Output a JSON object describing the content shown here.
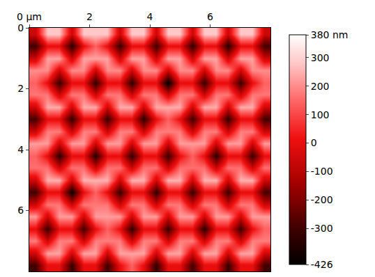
{
  "chart_data": {
    "type": "heatmap",
    "x": [
      0.2,
      0.6,
      1.0,
      1.4,
      1.8,
      2.2,
      2.6,
      3.0,
      3.4,
      3.8,
      4.2,
      4.6,
      5.0,
      5.4,
      5.8,
      6.2,
      6.6,
      7.0,
      7.4,
      7.8
    ],
    "y": [
      0.2,
      0.6,
      1.0,
      1.4,
      1.8,
      2.2,
      2.6,
      3.0,
      3.4,
      3.8,
      4.2,
      4.6,
      5.0,
      5.4,
      5.8,
      6.2,
      6.6,
      7.0,
      7.4,
      7.8
    ],
    "z": [
      [
        -60,
        280,
        280,
        -60,
        280,
        280,
        280,
        -60,
        280,
        280,
        -60,
        280,
        280,
        -60,
        280,
        280,
        -60,
        280,
        280,
        -60
      ],
      [
        -300,
        0,
        0,
        -340,
        0,
        140,
        0,
        -320,
        0,
        0,
        -310,
        0,
        0,
        -330,
        0,
        0,
        -350,
        0,
        0,
        -300
      ],
      [
        -60,
        230,
        230,
        -60,
        230,
        230,
        230,
        -60,
        230,
        230,
        -60,
        230,
        230,
        -60,
        230,
        230,
        -60,
        230,
        230,
        -60
      ],
      [
        200,
        200,
        -60,
        200,
        200,
        -60,
        200,
        200,
        -60,
        200,
        200,
        -60,
        200,
        200,
        -60,
        200,
        200,
        -60,
        200,
        200
      ],
      [
        140,
        0,
        -320,
        0,
        0,
        -330,
        0,
        0,
        -340,
        0,
        0,
        -426,
        0,
        0,
        -320,
        0,
        0,
        -310,
        0,
        140
      ],
      [
        170,
        170,
        -60,
        170,
        170,
        -60,
        170,
        170,
        -60,
        170,
        170,
        -60,
        170,
        170,
        -60,
        170,
        170,
        -60,
        170,
        170
      ],
      [
        -60,
        240,
        240,
        -60,
        240,
        240,
        -60,
        240,
        240,
        -60,
        240,
        240,
        240,
        -60,
        240,
        240,
        -60,
        240,
        240,
        -60
      ],
      [
        -290,
        0,
        0,
        -330,
        0,
        0,
        -320,
        0,
        0,
        -340,
        0,
        140,
        0,
        -310,
        0,
        0,
        -330,
        0,
        0,
        -300
      ],
      [
        -60,
        180,
        180,
        -60,
        180,
        180,
        -60,
        180,
        180,
        -60,
        180,
        180,
        180,
        -60,
        180,
        180,
        -60,
        180,
        180,
        -60
      ],
      [
        220,
        220,
        -60,
        220,
        220,
        -60,
        220,
        220,
        -60,
        220,
        220,
        -60,
        220,
        220,
        220,
        -60,
        220,
        220,
        -60,
        220
      ],
      [
        140,
        0,
        -340,
        0,
        0,
        -350,
        0,
        0,
        -330,
        0,
        0,
        -320,
        0,
        140,
        0,
        -340,
        0,
        0,
        -310,
        0
      ],
      [
        160,
        160,
        -60,
        160,
        160,
        -60,
        160,
        160,
        -60,
        160,
        160,
        -60,
        160,
        160,
        160,
        -60,
        160,
        160,
        -60,
        160
      ],
      [
        -60,
        250,
        250,
        -60,
        250,
        250,
        250,
        -60,
        250,
        250,
        -60,
        250,
        250,
        -60,
        250,
        250,
        -60,
        250,
        250,
        -60
      ],
      [
        -300,
        0,
        0,
        -400,
        0,
        140,
        0,
        -320,
        0,
        0,
        -330,
        0,
        0,
        -320,
        0,
        0,
        -310,
        0,
        0,
        -290
      ],
      [
        -60,
        170,
        170,
        -60,
        170,
        170,
        170,
        -60,
        170,
        170,
        -60,
        170,
        170,
        -60,
        170,
        170,
        -60,
        170,
        170,
        -60
      ],
      [
        220,
        -60,
        220,
        220,
        -60,
        220,
        220,
        220,
        -60,
        220,
        220,
        -60,
        220,
        220,
        -60,
        220,
        220,
        -60,
        220,
        220
      ],
      [
        0,
        -310,
        0,
        0,
        -300,
        0,
        140,
        0,
        -330,
        0,
        0,
        -320,
        0,
        0,
        -340,
        0,
        0,
        -310,
        0,
        140
      ],
      [
        180,
        -60,
        180,
        180,
        -60,
        180,
        180,
        180,
        -60,
        180,
        180,
        -60,
        180,
        180,
        -60,
        180,
        180,
        -60,
        180,
        180
      ],
      [
        -60,
        230,
        230,
        -60,
        230,
        230,
        -60,
        230,
        230,
        230,
        -60,
        230,
        230,
        -60,
        230,
        230,
        -60,
        230,
        230,
        -60
      ],
      [
        -300,
        0,
        0,
        -320,
        0,
        0,
        -310,
        0,
        140,
        0,
        -330,
        0,
        0,
        -300,
        0,
        0,
        -320,
        0,
        0,
        -300
      ]
    ],
    "xlim": [
      0,
      8
    ],
    "ylim": [
      8,
      0
    ],
    "xticks": [
      {
        "value": 0,
        "label": "0 µm"
      },
      2,
      4,
      6
    ],
    "yticks": [
      0,
      2,
      4,
      6
    ],
    "zlim": [
      -426,
      380
    ],
    "zticks": [
      {
        "value": 380,
        "label": "380 nm"
      },
      300,
      200,
      100,
      0,
      -100,
      -200,
      -300,
      -426
    ]
  }
}
